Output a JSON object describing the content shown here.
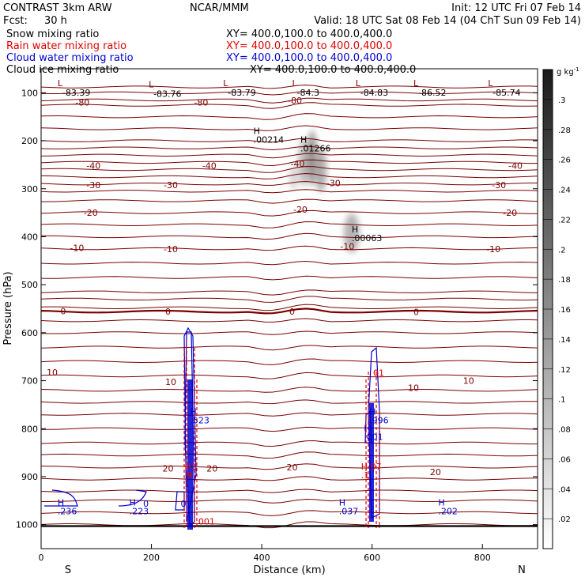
{
  "header": {
    "model": "CONTRAST  3km ARW",
    "center": "NCAR/MMM",
    "init": "Init: 12 UTC Fri 07 Feb 14",
    "fcst_label": "Fcst:",
    "fcst_value": "30 h",
    "valid": "Valid: 18 UTC Sat 08 Feb 14 (04 ChT Sun 09 Feb 14)"
  },
  "legend": [
    {
      "name": "Snow mixing ratio",
      "color": "#000000",
      "xy": "XY= 400.0,100.0 to 400.0,400.0"
    },
    {
      "name": "Rain water mixing ratio",
      "color": "#e00000",
      "xy": "XY= 400.0,100.0 to 400.0,400.0"
    },
    {
      "name": "Cloud water mixing ratio",
      "color": "#0000d0",
      "xy": "XY= 400.0,100.0 to 400.0,400.0"
    },
    {
      "name": "Cloud ice mixing ratio",
      "color": "#000000",
      "xy": "XY= 400.0,100.0 to 400.0,400.0"
    }
  ],
  "colorbar": {
    "unit": "g kg",
    "unit_exp": "-1",
    "ticks": [
      ".02",
      ".04",
      ".06",
      ".08",
      ".1",
      ".12",
      ".14",
      ".16",
      ".18",
      ".2",
      ".22",
      ".24",
      ".26",
      ".28",
      ".3"
    ]
  },
  "chart_data": {
    "type": "contour",
    "xlabel": "Distance (km)",
    "ylabel": "Pressure (hPa)",
    "xlim": [
      0,
      900
    ],
    "ylim": [
      1050,
      50
    ],
    "x_ticks": [
      0,
      200,
      400,
      600,
      800
    ],
    "y_ticks": [
      100,
      200,
      300,
      400,
      500,
      600,
      700,
      800,
      900,
      1000
    ],
    "x_end_labels": {
      "left": "S",
      "right": "N"
    },
    "temperature_contour_labels": [
      {
        "x": 75,
        "p": 120,
        "text": "-80"
      },
      {
        "x": 290,
        "p": 120,
        "text": "-80"
      },
      {
        "x": 460,
        "p": 116,
        "text": "-80"
      },
      {
        "x": 95,
        "p": 252,
        "text": "-40"
      },
      {
        "x": 305,
        "p": 252,
        "text": "-40"
      },
      {
        "x": 465,
        "p": 248,
        "text": "-40"
      },
      {
        "x": 860,
        "p": 252,
        "text": "-40"
      },
      {
        "x": 95,
        "p": 292,
        "text": "-30"
      },
      {
        "x": 235,
        "p": 292,
        "text": "-30"
      },
      {
        "x": 530,
        "p": 288,
        "text": "-30"
      },
      {
        "x": 830,
        "p": 292,
        "text": "-30"
      },
      {
        "x": 90,
        "p": 350,
        "text": "-20"
      },
      {
        "x": 470,
        "p": 343,
        "text": "-20"
      },
      {
        "x": 850,
        "p": 350,
        "text": "-20"
      },
      {
        "x": 65,
        "p": 423,
        "text": "-10"
      },
      {
        "x": 235,
        "p": 426,
        "text": "-10"
      },
      {
        "x": 555,
        "p": 420,
        "text": "-10"
      },
      {
        "x": 820,
        "p": 426,
        "text": "-10"
      },
      {
        "x": 40,
        "p": 555,
        "text": "0"
      },
      {
        "x": 230,
        "p": 556,
        "text": "0"
      },
      {
        "x": 455,
        "p": 556,
        "text": "0"
      },
      {
        "x": 680,
        "p": 557,
        "text": "0"
      },
      {
        "x": 20,
        "p": 683,
        "text": "10"
      },
      {
        "x": 235,
        "p": 702,
        "text": "10"
      },
      {
        "x": 675,
        "p": 715,
        "text": "10"
      },
      {
        "x": 775,
        "p": 700,
        "text": "10"
      },
      {
        "x": 230,
        "p": 883,
        "text": "20"
      },
      {
        "x": 310,
        "p": 883,
        "text": "20"
      },
      {
        "x": 455,
        "p": 880,
        "text": "20"
      },
      {
        "x": 715,
        "p": 890,
        "text": "20"
      }
    ],
    "min_markers": [
      {
        "x": 30,
        "p": 80,
        "symbol": "L",
        "value": "-83.39"
      },
      {
        "x": 195,
        "p": 82,
        "symbol": "L",
        "value": "-83.76"
      },
      {
        "x": 330,
        "p": 80,
        "symbol": "L",
        "value": "-83.79"
      },
      {
        "x": 455,
        "p": 80,
        "symbol": "L",
        "value": "-84.3"
      },
      {
        "x": 570,
        "p": 80,
        "symbol": "L",
        "value": "-84.83"
      },
      {
        "x": 675,
        "p": 80,
        "symbol": "L",
        "value": "-86.52"
      },
      {
        "x": 810,
        "p": 80,
        "symbol": "L",
        "value": "-85.74"
      }
    ],
    "max_markers": [
      {
        "x": 385,
        "p": 186,
        "value": ".00214",
        "color": "#000000"
      },
      {
        "x": 470,
        "p": 204,
        "value": ".01266",
        "color": "#000000"
      },
      {
        "x": 563,
        "p": 391,
        "value": ".00063",
        "color": "#000000"
      },
      {
        "x": 270,
        "p": 771,
        "value": ".523",
        "color": "#0000d0"
      },
      {
        "x": 595,
        "p": 771,
        "value": ".996",
        "color": "#0000d0"
      },
      {
        "x": 585,
        "p": 805,
        "value": ".001",
        "color": "#0000d0"
      },
      {
        "x": 260,
        "p": 885,
        "value": ".9",
        "color": "#e00000"
      },
      {
        "x": 580,
        "p": 885,
        "value": ".1",
        "color": "#e00000"
      },
      {
        "x": 30,
        "p": 960,
        "value": ".236",
        "color": "#0000d0"
      },
      {
        "x": 160,
        "p": 960,
        "value": ".223",
        "color": "#0000d0"
      },
      {
        "x": 540,
        "p": 960,
        "value": ".037",
        "color": "#0000d0"
      },
      {
        "x": 720,
        "p": 960,
        "value": ".202",
        "color": "#0000d0"
      }
    ],
    "extra_labels": [
      {
        "x": 185,
        "p": 963,
        "text": "0",
        "color": "#0000d0"
      },
      {
        "x": 253,
        "p": 963,
        "text": "0",
        "color": "#0000d0"
      },
      {
        "x": 272,
        "p": 885,
        "text": "1",
        "color": "#e00000"
      },
      {
        "x": 597,
        "p": 885,
        "text": "07",
        "color": "#e00000"
      },
      {
        "x": 280,
        "p": 1000,
        "text": ".001",
        "color": "#e00000"
      },
      {
        "x": 602,
        "p": 690,
        "text": "01",
        "color": "#e00000"
      }
    ]
  }
}
